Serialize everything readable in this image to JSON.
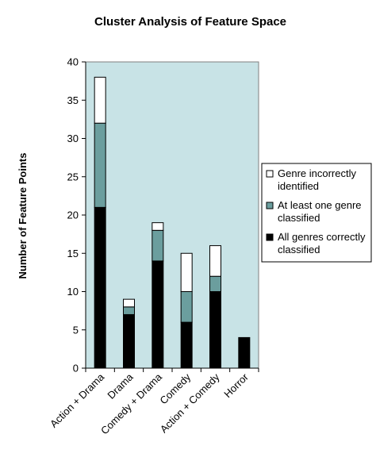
{
  "chart_data": {
    "type": "bar",
    "stacked": true,
    "title": "Cluster Analysis of Feature Space",
    "ylabel": "Number of Feature Points",
    "xlabel": "",
    "ylim": [
      0,
      40
    ],
    "yticks": [
      0,
      5,
      10,
      15,
      20,
      25,
      30,
      35,
      40
    ],
    "grid": false,
    "plot_background": "#c8e3e6",
    "legend_position": "right",
    "categories": [
      "Action + Drama",
      "Drama",
      "Comedy + Drama",
      "Comedy",
      "Action + Comedy",
      "Horror"
    ],
    "series": [
      {
        "name": "All genres correctly classified",
        "color": "#000000",
        "values": [
          21,
          7,
          14,
          6,
          10,
          4
        ]
      },
      {
        "name": "At least one genre classified",
        "color": "#6b9e9e",
        "values": [
          11,
          1,
          4,
          4,
          2,
          0
        ]
      },
      {
        "name": "Genre incorrectly identified",
        "color": "#ffffff",
        "values": [
          6,
          1,
          1,
          5,
          4,
          0
        ]
      }
    ],
    "legend_entries": [
      {
        "name": "Genre incorrectly identified",
        "color": "#ffffff",
        "lines": [
          "Genre incorrectly",
          "identified"
        ]
      },
      {
        "name": "At least one genre classified",
        "color": "#6b9e9e",
        "lines": [
          "At least one genre",
          "classified"
        ]
      },
      {
        "name": "All genres correctly classified",
        "color": "#000000",
        "lines": [
          "All genres correctly",
          "classified"
        ]
      }
    ]
  }
}
